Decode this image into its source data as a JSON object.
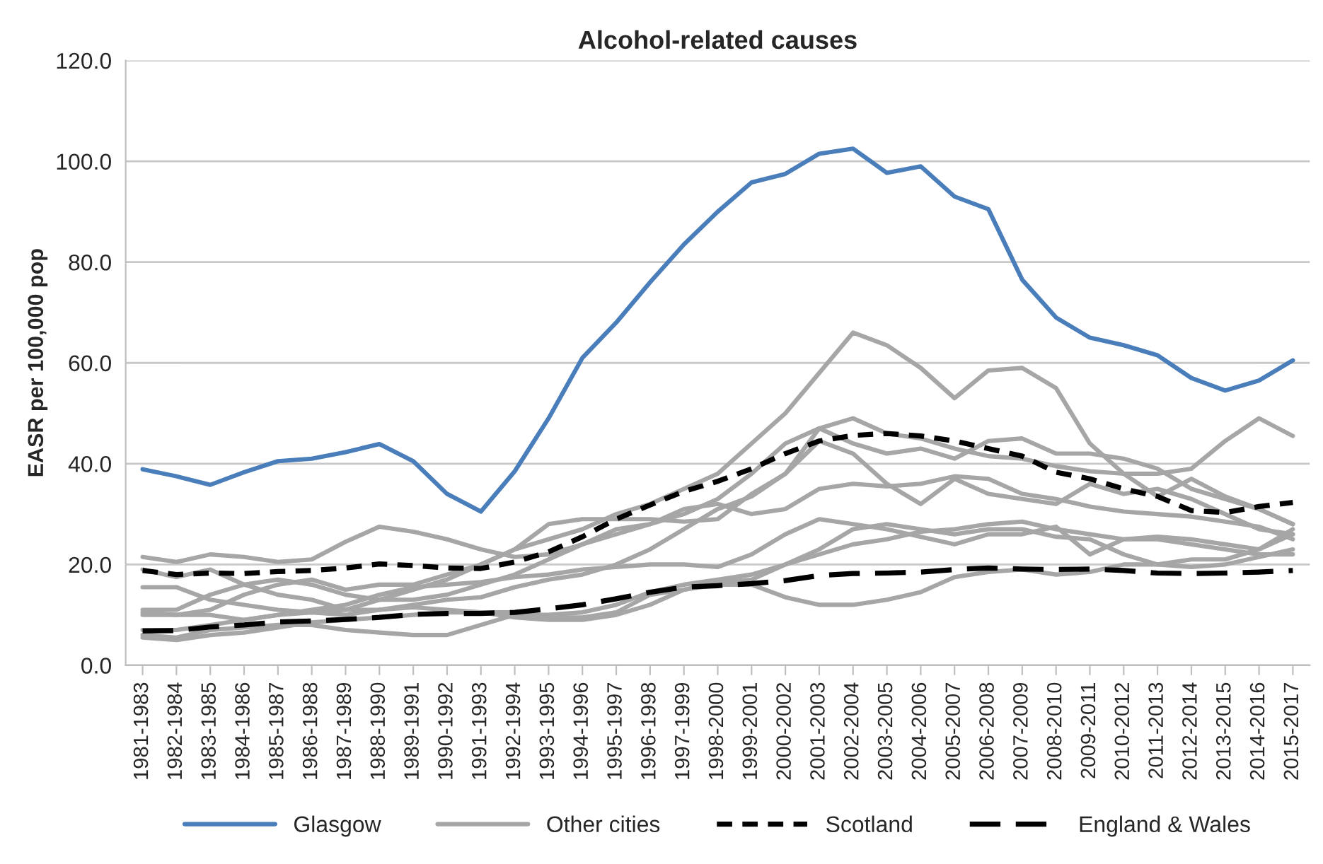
{
  "chart_data": {
    "type": "line",
    "title": "Alcohol-related causes",
    "ylabel": "EASR per 100,000 pop",
    "categories": [
      "1981-1983",
      "1982-1984",
      "1983-1985",
      "1984-1986",
      "1985-1987",
      "1986-1988",
      "1987-1989",
      "1988-1990",
      "1989-1991",
      "1990-1992",
      "1991-1993",
      "1992-1994",
      "1993-1995",
      "1994-1996",
      "1995-1997",
      "1996-1998",
      "1997-1999",
      "1998-2000",
      "1999-2001",
      "2000-2002",
      "2001-2003",
      "2002-2004",
      "2003-2005",
      "2004-2006",
      "2005-2007",
      "2006-2008",
      "2007-2009",
      "2008-2010",
      "2009-2011",
      "2010-2012",
      "2011-2013",
      "2012-2014",
      "2013-2015",
      "2014-2016",
      "2015-2017"
    ],
    "ylim": [
      0,
      120
    ],
    "yticks": [
      {
        "value": 0,
        "label": "0.0"
      },
      {
        "value": 20,
        "label": "20.0"
      },
      {
        "value": 40,
        "label": "40.0"
      },
      {
        "value": 60,
        "label": "60.0"
      },
      {
        "value": 80,
        "label": "80.0"
      },
      {
        "value": 100,
        "label": "100.0"
      },
      {
        "value": 120,
        "label": "120.0"
      }
    ],
    "grid": "y",
    "legend": "bottom",
    "marker": "none",
    "series": [
      {
        "name": "Glasgow",
        "color": "#4a7ebb",
        "line_style": "solid",
        "values": [
          38.9,
          37.5,
          35.8,
          38.3,
          40.5,
          41.0,
          42.3,
          43.9,
          40.5,
          34.0,
          30.5,
          38.5,
          49.0,
          61.0,
          68.0,
          76.0,
          83.5,
          90.0,
          95.8,
          97.5,
          101.5,
          102.5,
          97.7,
          99.0,
          93.0,
          90.5,
          76.5,
          69.0,
          65.0,
          63.5,
          61.5,
          57.0,
          54.5,
          56.5,
          60.5
        ]
      },
      {
        "name": "Other cities",
        "color": "#a6a6a6",
        "line_style": "solid",
        "values": [
          10.5,
          10,
          11,
          14,
          16,
          17,
          15,
          16,
          16,
          18,
          20,
          23,
          25,
          27,
          30,
          32,
          35,
          38,
          44,
          50,
          58,
          66,
          63.5,
          59,
          53,
          58.5,
          59,
          55,
          44,
          38,
          33.5,
          37,
          33.5,
          31,
          28
        ]
      },
      {
        "name": "Scotland",
        "color": "#000000",
        "line_style": "dotted",
        "values": [
          18.8,
          18.0,
          18.3,
          18.2,
          18.6,
          18.8,
          19.3,
          20.1,
          19.8,
          19.3,
          19.2,
          20.5,
          22.5,
          25.5,
          29.0,
          31.8,
          34.5,
          36.5,
          39.0,
          42.0,
          44.5,
          45.6,
          46.0,
          45.5,
          44.5,
          43.0,
          41.5,
          38.3,
          37.0,
          35.0,
          33.5,
          30.7,
          30.3,
          31.5,
          32.3
        ]
      },
      {
        "name": "England & Wales",
        "color": "#000000",
        "line_style": "dashed",
        "values": [
          6.8,
          6.9,
          7.6,
          8.0,
          8.6,
          8.8,
          9.1,
          9.5,
          10.1,
          10.3,
          10.3,
          10.5,
          11.2,
          12.0,
          13.2,
          14.5,
          15.5,
          15.8,
          16.2,
          16.8,
          17.8,
          18.2,
          18.3,
          18.5,
          19.0,
          19.3,
          19.1,
          19.0,
          19.1,
          18.8,
          18.3,
          18.2,
          18.3,
          18.5,
          18.8
        ]
      },
      {
        "color": "#a6a6a6",
        "line_style": "solid",
        "values": [
          21.5,
          20.5,
          22,
          21.5,
          20.5,
          21,
          24.5,
          27.5,
          26.5,
          25,
          23,
          21.5,
          22,
          24,
          27,
          28,
          30,
          33,
          38,
          44,
          47,
          49,
          46,
          45,
          43,
          41.5,
          41,
          39.5,
          38.5,
          38,
          38,
          39,
          44.5,
          49,
          45.5
        ]
      },
      {
        "color": "#a6a6a6",
        "line_style": "solid",
        "values": [
          15.5,
          15.5,
          13,
          12,
          11,
          10.5,
          11,
          13,
          15,
          17,
          20,
          23,
          28,
          29,
          29,
          29,
          28.5,
          29,
          34,
          38,
          47,
          44,
          42,
          43,
          41,
          44.5,
          45,
          42,
          42,
          41,
          39,
          35,
          33,
          31,
          28
        ]
      },
      {
        "color": "#a6a6a6",
        "line_style": "solid",
        "values": [
          19,
          17.5,
          19,
          16,
          14,
          13,
          11,
          11,
          12,
          13,
          13.5,
          15.5,
          17,
          18,
          20,
          23,
          27,
          31,
          33.5,
          38,
          44.5,
          42,
          36,
          32,
          37,
          34,
          33,
          32,
          36,
          34,
          35,
          33,
          30,
          27,
          26
        ]
      },
      {
        "color": "#a6a6a6",
        "line_style": "solid",
        "values": [
          11,
          11,
          14,
          16,
          17,
          16,
          14,
          13,
          13,
          14,
          16,
          18,
          21,
          24,
          26,
          28,
          31,
          32,
          30,
          31,
          35,
          36,
          35.5,
          36,
          37.5,
          37,
          34,
          33,
          31.5,
          30.5,
          30,
          29.5,
          28.5,
          27.5,
          25
        ]
      },
      {
        "color": "#a6a6a6",
        "line_style": "solid",
        "values": [
          7,
          7,
          8,
          9,
          10,
          11,
          12,
          14,
          15.5,
          16,
          16.5,
          17.5,
          18,
          19,
          19.5,
          20,
          20,
          19.5,
          22,
          26,
          29,
          28,
          27,
          25.5,
          24,
          26,
          26,
          27.5,
          22,
          25,
          25.5,
          25,
          24,
          23,
          26
        ]
      },
      {
        "color": "#a6a6a6",
        "line_style": "solid",
        "values": [
          6,
          5.5,
          7,
          7.5,
          8,
          8,
          7,
          6.5,
          6,
          6,
          8,
          10,
          10,
          10.5,
          12,
          14.5,
          16,
          17,
          18,
          20,
          23,
          27,
          28,
          27,
          26,
          27,
          27,
          25.5,
          25,
          22,
          20,
          21,
          21,
          23,
          27
        ]
      },
      {
        "color": "#a6a6a6",
        "line_style": "solid",
        "values": [
          5.5,
          5,
          6,
          6.5,
          7.5,
          8.5,
          9,
          9.5,
          10,
          10.5,
          10.5,
          9.5,
          9,
          9,
          10,
          12,
          15,
          16,
          16,
          13.5,
          12,
          12,
          13,
          14.5,
          17.5,
          18.5,
          19,
          18,
          18.5,
          20,
          20,
          19.5,
          20,
          21.5,
          23
        ]
      },
      {
        "color": "#a6a6a6",
        "line_style": "solid",
        "values": [
          10,
          10,
          10,
          9,
          10,
          10.5,
          10,
          11,
          11.5,
          11,
          10.5,
          10.5,
          9.5,
          9.5,
          10.5,
          14,
          15,
          16.5,
          17,
          20,
          22,
          24,
          25,
          26.5,
          27,
          28,
          28.5,
          27,
          26,
          25,
          25,
          24,
          23,
          22,
          22
        ]
      }
    ]
  }
}
